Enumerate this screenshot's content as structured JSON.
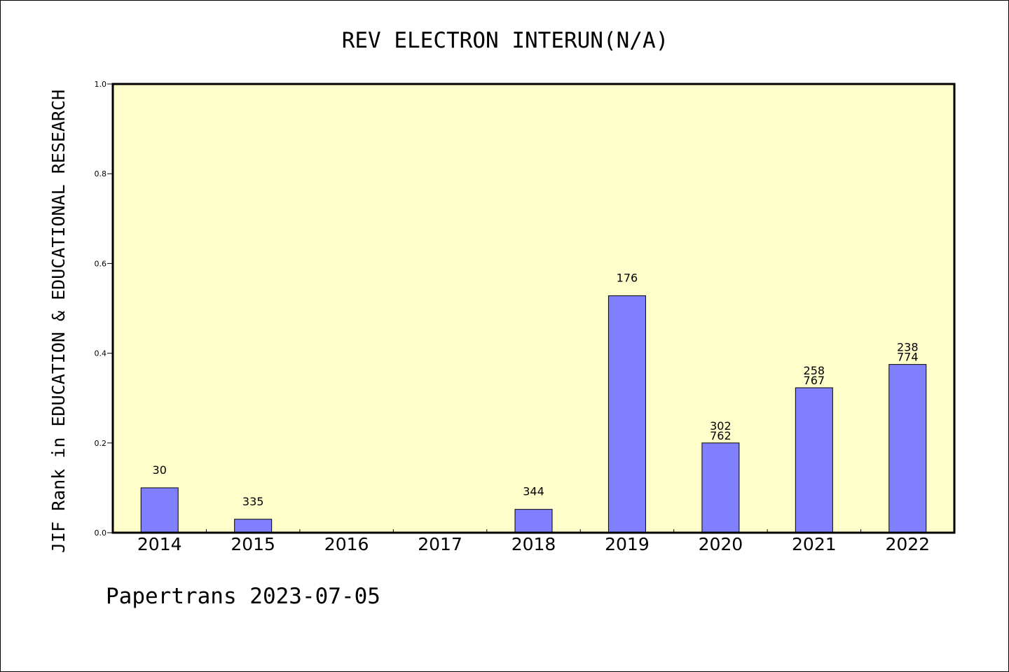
{
  "colors": {
    "plot_background": "#ffffcc",
    "bar_fill": "#8080ff",
    "axis": "#000000"
  },
  "chart_data": {
    "type": "bar",
    "title": "REV ELECTRON INTERUN(N/A)",
    "xlabel": "",
    "ylabel": "JIF Rank in EDUCATION & EDUCATIONAL RESEARCH",
    "ylim": [
      0,
      1.0
    ],
    "yticks": [
      "0.0",
      "0.2",
      "0.4",
      "0.6",
      "0.8",
      "1.0"
    ],
    "grid": false,
    "categories": [
      "2014",
      "2015",
      "2016",
      "2017",
      "2018",
      "2019",
      "2020",
      "2021",
      "2022"
    ],
    "values": [
      0.1,
      0.03,
      0,
      0,
      0.052,
      0.528,
      0.2,
      0.323,
      0.375
    ],
    "labels": [
      [
        "30"
      ],
      [
        "335"
      ],
      [],
      [],
      [
        "344"
      ],
      [
        "176"
      ],
      [
        "302",
        "762"
      ],
      [
        "258",
        "767"
      ],
      [
        "238",
        "774"
      ]
    ]
  },
  "footer": {
    "text": "Papertrans 2023-07-05"
  }
}
